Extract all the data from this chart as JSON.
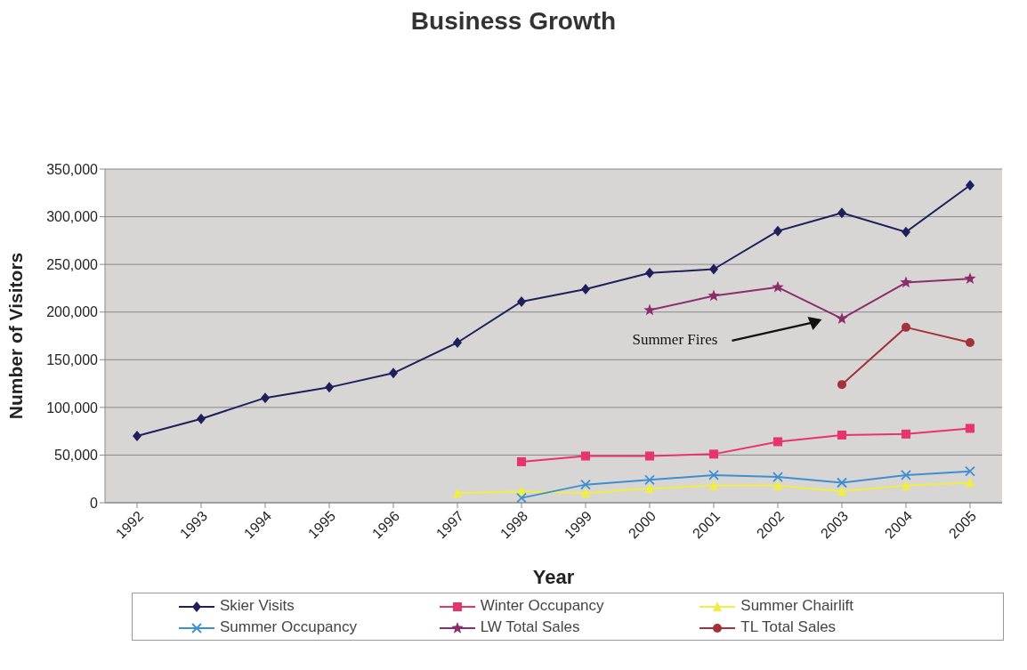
{
  "chart_data": {
    "type": "line",
    "title": "Business Growth",
    "xlabel": "Year",
    "ylabel": "Number of Visitors",
    "categories": [
      "1992",
      "1993",
      "1994",
      "1995",
      "1996",
      "1997",
      "1998",
      "1999",
      "2000",
      "2001",
      "2002",
      "2003",
      "2004",
      "2005"
    ],
    "series": [
      {
        "name": "Skier Visits",
        "color": "#1f1f5c",
        "marker": "diamond",
        "values": [
          70000,
          88000,
          110000,
          121000,
          136000,
          168000,
          211000,
          224000,
          241000,
          245000,
          285000,
          304000,
          284000,
          333000
        ]
      },
      {
        "name": "Winter Occupancy",
        "color": "#e8336e",
        "marker": "square",
        "values": [
          null,
          null,
          null,
          null,
          null,
          null,
          43000,
          49000,
          49000,
          51000,
          64000,
          71000,
          72000,
          78000
        ]
      },
      {
        "name": "Summer Chairlift",
        "color": "#eeee44",
        "marker": "triangle",
        "values": [
          null,
          null,
          null,
          null,
          null,
          10000,
          12000,
          10000,
          15000,
          18000,
          18000,
          12000,
          18000,
          21000
        ]
      },
      {
        "name": "Summer Occupancy",
        "color": "#3d8fd0",
        "marker": "cross",
        "values": [
          null,
          null,
          null,
          null,
          null,
          null,
          5000,
          19000,
          24000,
          29000,
          27000,
          21000,
          29000,
          33000
        ]
      },
      {
        "name": "LW Total Sales",
        "color": "#8b2d6b",
        "marker": "star",
        "values": [
          null,
          null,
          null,
          null,
          null,
          null,
          null,
          null,
          202000,
          217000,
          226000,
          193000,
          231000,
          235000
        ]
      },
      {
        "name": "TL Total Sales",
        "color": "#a3303a",
        "marker": "circle",
        "values": [
          null,
          null,
          null,
          null,
          null,
          null,
          null,
          null,
          null,
          null,
          null,
          124000,
          184000,
          168000
        ]
      }
    ],
    "ylim": [
      0,
      350000
    ],
    "yticks": [
      0,
      {
        "value": 50000,
        "label": "50,000"
      },
      {
        "value": 100000,
        "label": "100,000"
      },
      {
        "value": 150000,
        "label": "150,000"
      },
      {
        "value": 200000,
        "label": "200,000"
      },
      {
        "value": 250000,
        "label": "250,000"
      },
      {
        "value": 300000,
        "label": "300,000"
      },
      {
        "value": 350000,
        "label": "350,000"
      }
    ],
    "grid": "y",
    "legend": "bottom",
    "annotations": [
      "Summer Fires"
    ]
  }
}
